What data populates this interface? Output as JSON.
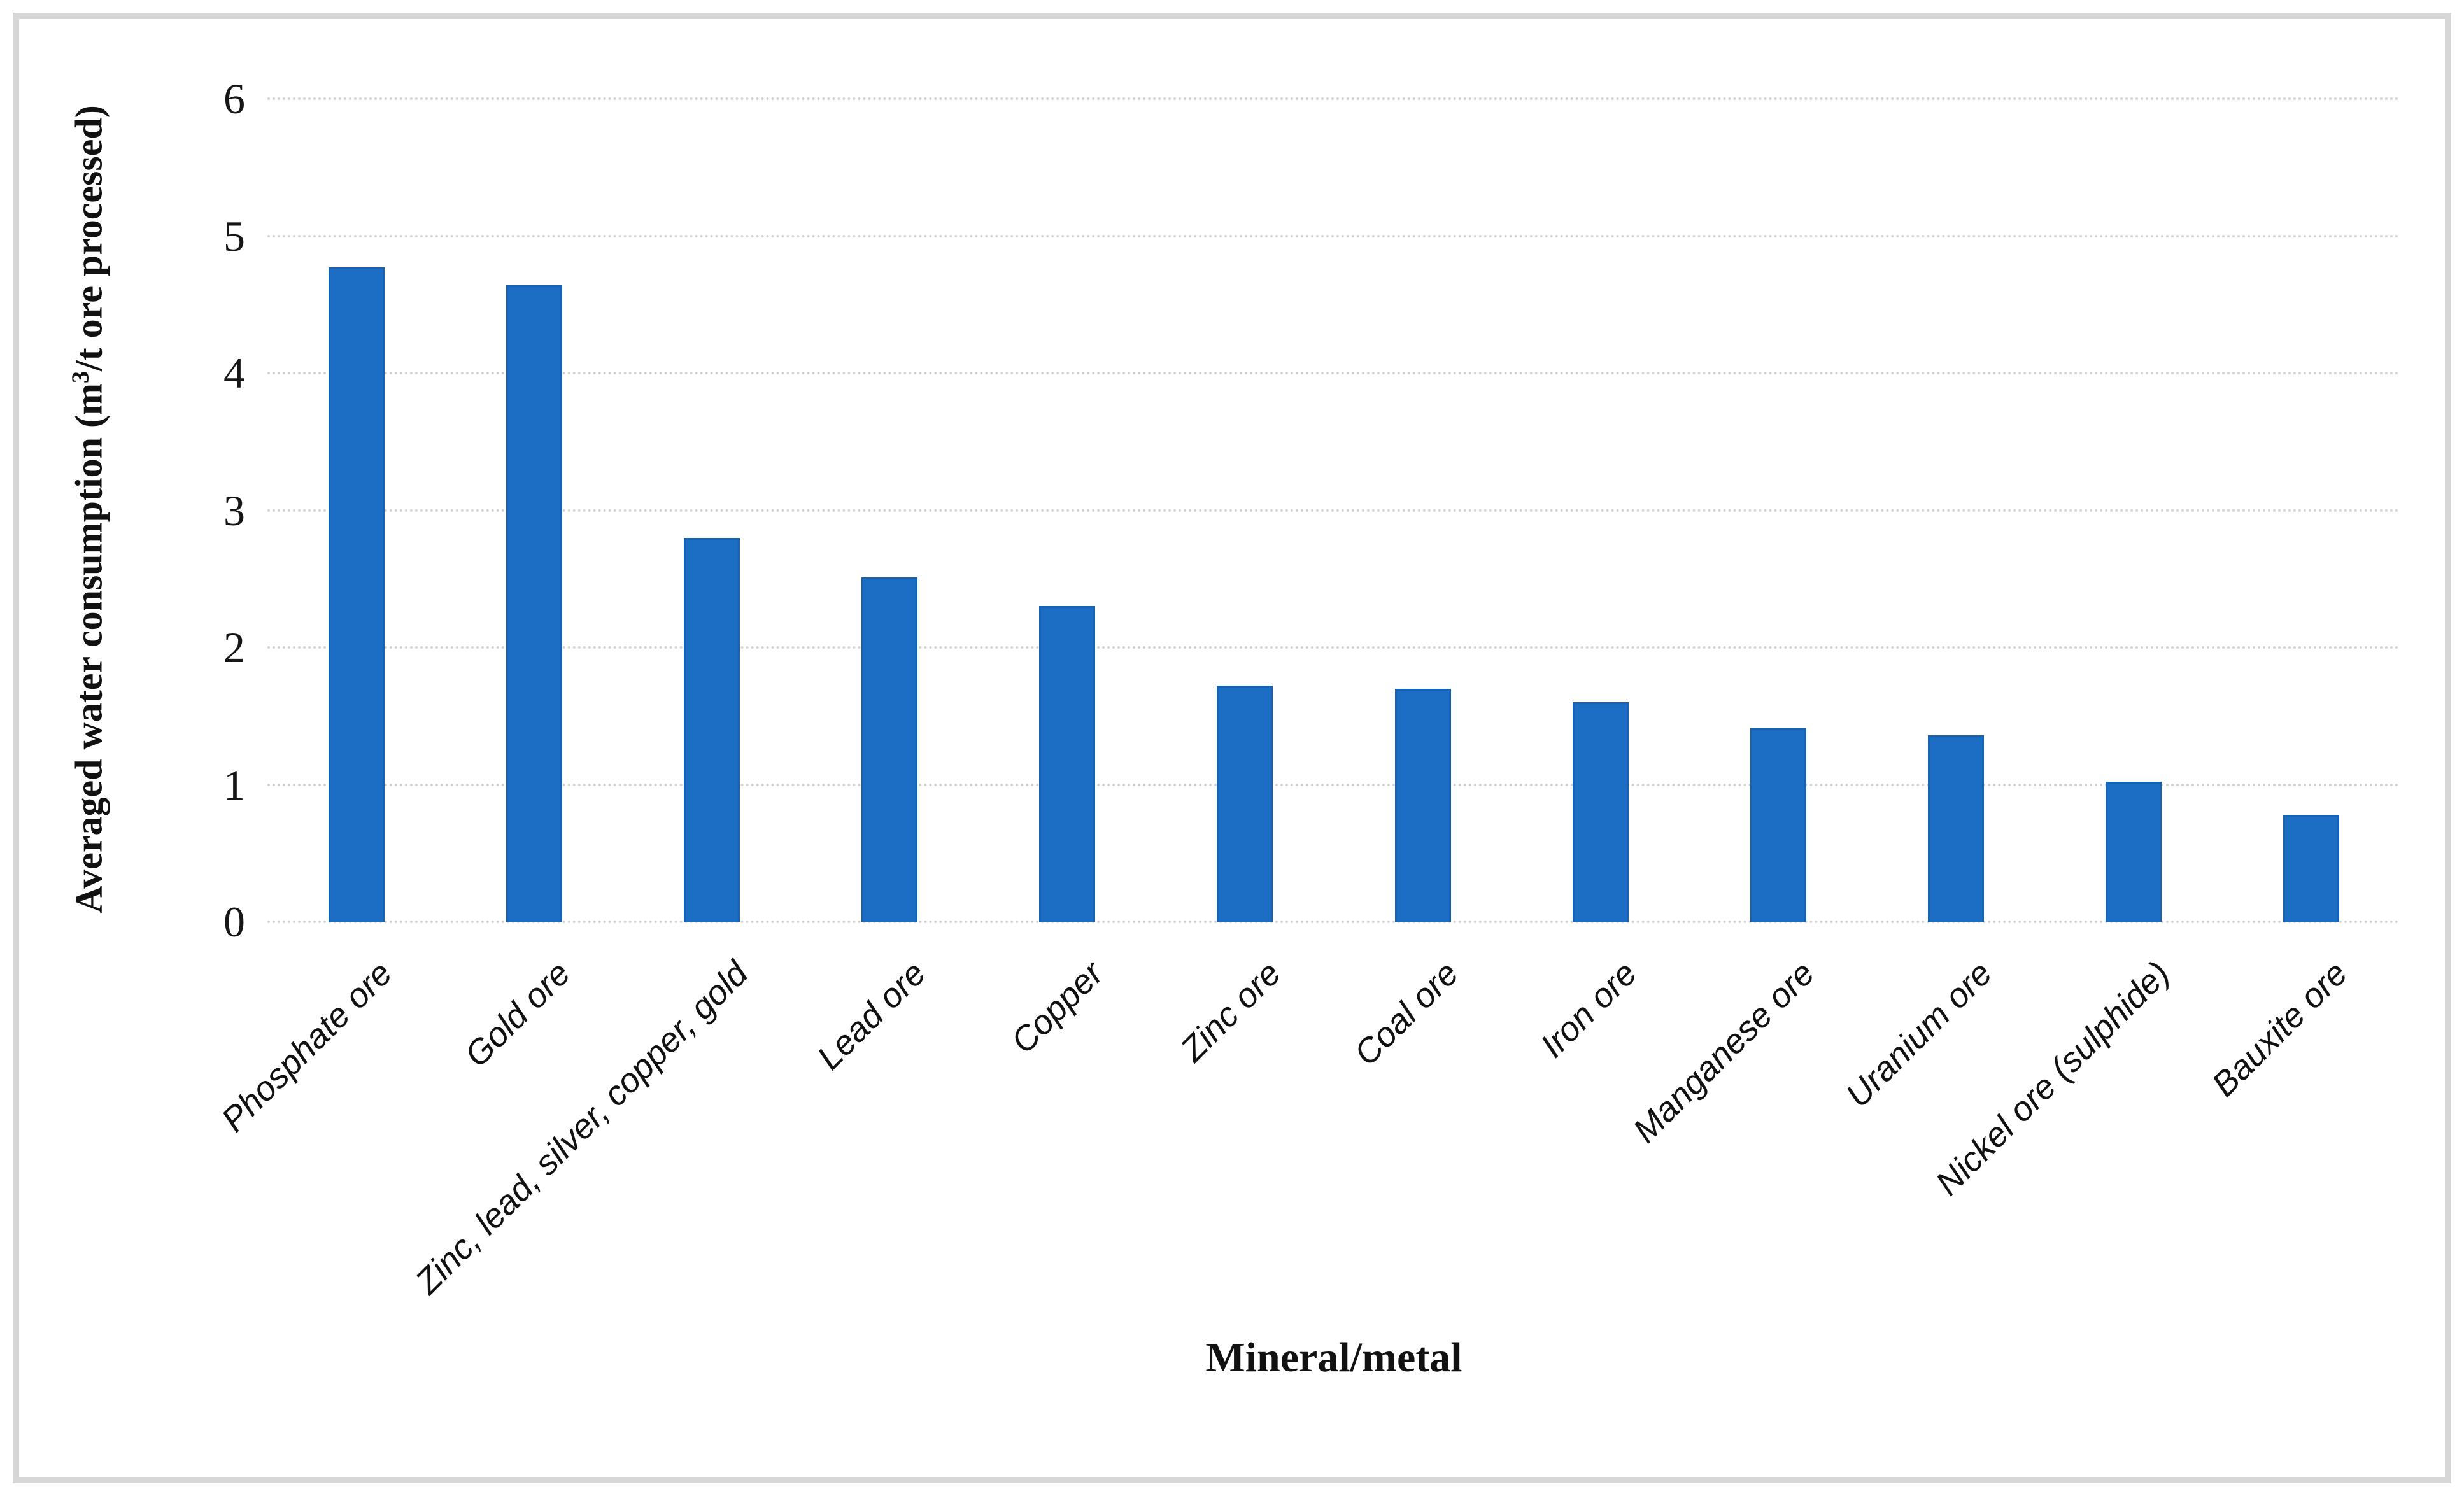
{
  "figure": {
    "background_color": "#ffffff",
    "frame_border_color": "#d7d7d7"
  },
  "chart_data": {
    "type": "bar",
    "title": "",
    "categories": [
      "Phosphate ore",
      "Gold ore",
      "Zinc, lead, silver, copper, gold",
      "Lead ore",
      "Copper",
      "Zinc ore",
      "Coal ore",
      "Iron ore",
      "Manganese ore",
      "Uranium ore",
      "Nickel ore (sulphide)",
      "Bauxite ore"
    ],
    "values": [
      4.77,
      4.64,
      2.8,
      2.51,
      2.3,
      1.72,
      1.7,
      1.6,
      1.41,
      1.36,
      1.02,
      0.78
    ],
    "xlabel": "Mineral/metal",
    "ylabel_parts": {
      "pre": "Averaged water consumption (m",
      "sup": "3",
      "post": "/t ore processed)"
    },
    "ylim": [
      0,
      6
    ],
    "yticks": [
      "0",
      "1",
      "2",
      "3",
      "4",
      "5",
      "6"
    ],
    "grid": "horizontal-dotted",
    "legend": "none",
    "bar_color": "#1c6dc4",
    "bar_edge_color": "#1663b4",
    "gridline_color": "#d4d4d4",
    "tick_label_color": "#161616",
    "category_label_style": "italic, rotated 45deg"
  }
}
